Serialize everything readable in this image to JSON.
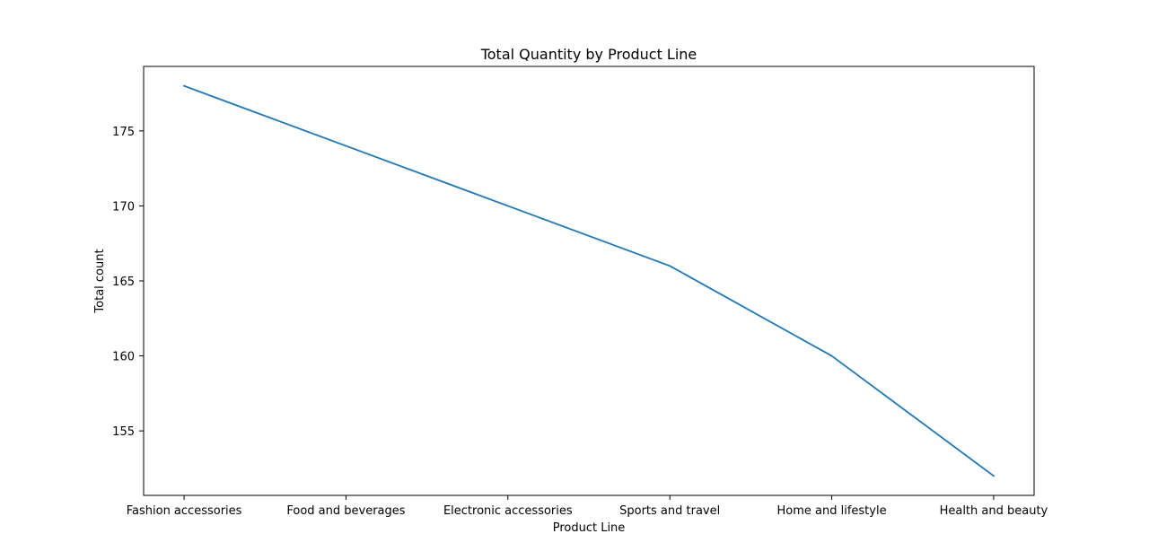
{
  "chart_data": {
    "type": "line",
    "title": "Total Quantity by Product Line",
    "xlabel": "Product Line",
    "ylabel": "Total count",
    "categories": [
      "Fashion accessories",
      "Food and beverages",
      "Electronic accessories",
      "Sports and travel",
      "Home and lifestyle",
      "Health and beauty"
    ],
    "series": [
      {
        "values": [
          178,
          174,
          170,
          166,
          160,
          152
        ],
        "color": "#1f77b4"
      }
    ],
    "ylim": [
      150.7,
      179.3
    ],
    "yticks": [
      155,
      160,
      165,
      170,
      175
    ],
    "grid": false,
    "legend": false
  }
}
